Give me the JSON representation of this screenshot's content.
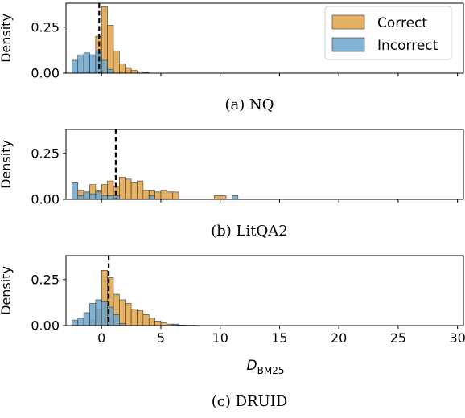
{
  "colors": {
    "correct": "#e6b062",
    "incorrect": "#6aa6cf",
    "overlap": "#97a484",
    "edge": "#333333"
  },
  "legend": {
    "correct": "Correct",
    "incorrect": "Incorrect"
  },
  "xlabel": {
    "main": "D",
    "sub": "BM25"
  },
  "chart_data": [
    {
      "type": "histogram",
      "caption": "(a) NQ",
      "ylabel": "Density",
      "xlim": [
        -3,
        30.5
      ],
      "ylim": [
        0,
        0.38
      ],
      "yticks": [
        0.0,
        0.25
      ],
      "yticklabels": [
        "0.00",
        "0.25"
      ],
      "show_xticklabels": false,
      "median": -0.2,
      "legend": "top-right",
      "series": [
        {
          "name": "Correct",
          "bins": [
            [
              -0.5,
              0,
              0.2
            ],
            [
              0,
              0.5,
              0.36
            ],
            [
              0.5,
              1,
              0.26
            ],
            [
              1,
              1.5,
              0.12
            ],
            [
              1.5,
              2,
              0.05
            ],
            [
              2,
              2.5,
              0.03
            ],
            [
              2.5,
              3,
              0.015
            ],
            [
              3,
              3.5,
              0.008
            ],
            [
              3.5,
              4,
              0.004
            ]
          ]
        },
        {
          "name": "Incorrect",
          "bins": [
            [
              -2.5,
              -2,
              0.07
            ],
            [
              -2,
              -1.5,
              0.1
            ],
            [
              -1.5,
              -1,
              0.11
            ],
            [
              -1,
              -0.5,
              0.1
            ],
            [
              -0.5,
              0,
              0.12
            ],
            [
              0,
              0.5,
              0.07
            ],
            [
              0.5,
              1,
              0.02
            ]
          ]
        }
      ]
    },
    {
      "type": "histogram",
      "caption": "(b) LitQA2",
      "ylabel": "Density",
      "xlim": [
        -3,
        30.5
      ],
      "ylim": [
        0,
        0.38
      ],
      "yticks": [
        0.0,
        0.25
      ],
      "yticklabels": [
        "0.00",
        "0.25"
      ],
      "show_xticklabels": false,
      "median": 1.2,
      "series": [
        {
          "name": "Correct",
          "bins": [
            [
              -2,
              -1.5,
              0.05
            ],
            [
              -1.5,
              -1,
              0.04
            ],
            [
              -1,
              -0.5,
              0.08
            ],
            [
              -0.5,
              0,
              0.05
            ],
            [
              0,
              0.5,
              0.08
            ],
            [
              0.5,
              1,
              0.1
            ],
            [
              1,
              1.5,
              0.07
            ],
            [
              1.5,
              2,
              0.12
            ],
            [
              2,
              2.5,
              0.11
            ],
            [
              2.5,
              3,
              0.09
            ],
            [
              3,
              3.5,
              0.1
            ],
            [
              3.5,
              4,
              0.05
            ],
            [
              4,
              4.5,
              0.05
            ],
            [
              4.5,
              5,
              0.04
            ],
            [
              5,
              5.5,
              0.05
            ],
            [
              5.5,
              6,
              0.04
            ],
            [
              6,
              6.5,
              0.04
            ],
            [
              9.5,
              10,
              0.02
            ],
            [
              10,
              10.5,
              0.02
            ]
          ]
        },
        {
          "name": "Incorrect",
          "bins": [
            [
              -2.5,
              -2,
              0.09
            ],
            [
              -2,
              -1.5,
              0.02
            ],
            [
              -1.5,
              -1,
              0.04
            ],
            [
              -1,
              -0.5,
              0.03
            ],
            [
              -0.5,
              0,
              0.04
            ],
            [
              0,
              0.5,
              0.02
            ],
            [
              0.5,
              1,
              0.02
            ],
            [
              1,
              1.5,
              0.02
            ],
            [
              4,
              4.5,
              0.02
            ],
            [
              11,
              11.5,
              0.02
            ]
          ]
        }
      ]
    },
    {
      "type": "histogram",
      "caption": "(c) DRUID",
      "ylabel": "Density",
      "xlim": [
        -3,
        30.5
      ],
      "ylim": [
        0,
        0.38
      ],
      "yticks": [
        0.0,
        0.25
      ],
      "yticklabels": [
        "0.00",
        "0.25"
      ],
      "show_xticklabels": true,
      "xticks": [
        0,
        5,
        10,
        15,
        20,
        25,
        30
      ],
      "median": 0.6,
      "series": [
        {
          "name": "Correct",
          "bins": [
            [
              -1,
              -0.5,
              0.03
            ],
            [
              -0.5,
              0,
              0.09
            ],
            [
              0,
              0.5,
              0.3
            ],
            [
              0.5,
              1,
              0.26
            ],
            [
              1,
              1.5,
              0.17
            ],
            [
              1.5,
              2,
              0.14
            ],
            [
              2,
              2.5,
              0.12
            ],
            [
              2.5,
              3,
              0.09
            ],
            [
              3,
              3.5,
              0.08
            ],
            [
              3.5,
              4,
              0.06
            ],
            [
              4,
              4.5,
              0.04
            ],
            [
              4.5,
              5,
              0.025
            ],
            [
              5,
              5.5,
              0.015
            ],
            [
              5.5,
              6,
              0.008
            ],
            [
              6,
              6.5,
              0.004
            ],
            [
              6.5,
              7,
              0.003
            ],
            [
              7,
              7.5,
              0.002
            ],
            [
              7.5,
              8,
              0.002
            ],
            [
              8,
              8.5,
              0.001
            ],
            [
              8.5,
              9,
              0.001
            ],
            [
              9,
              9.5,
              0.001
            ],
            [
              9.5,
              10,
              0.001
            ]
          ]
        },
        {
          "name": "Incorrect",
          "bins": [
            [
              -2.5,
              -2,
              0.03
            ],
            [
              -2,
              -1.5,
              0.04
            ],
            [
              -1.5,
              -1,
              0.07
            ],
            [
              -1,
              -0.5,
              0.12
            ],
            [
              -0.5,
              0,
              0.14
            ],
            [
              0,
              0.5,
              0.13
            ],
            [
              0.5,
              1,
              0.1
            ],
            [
              1,
              1.5,
              0.06
            ],
            [
              1.5,
              2,
              0.01
            ],
            [
              6,
              6.5,
              0.008
            ]
          ]
        }
      ]
    }
  ]
}
